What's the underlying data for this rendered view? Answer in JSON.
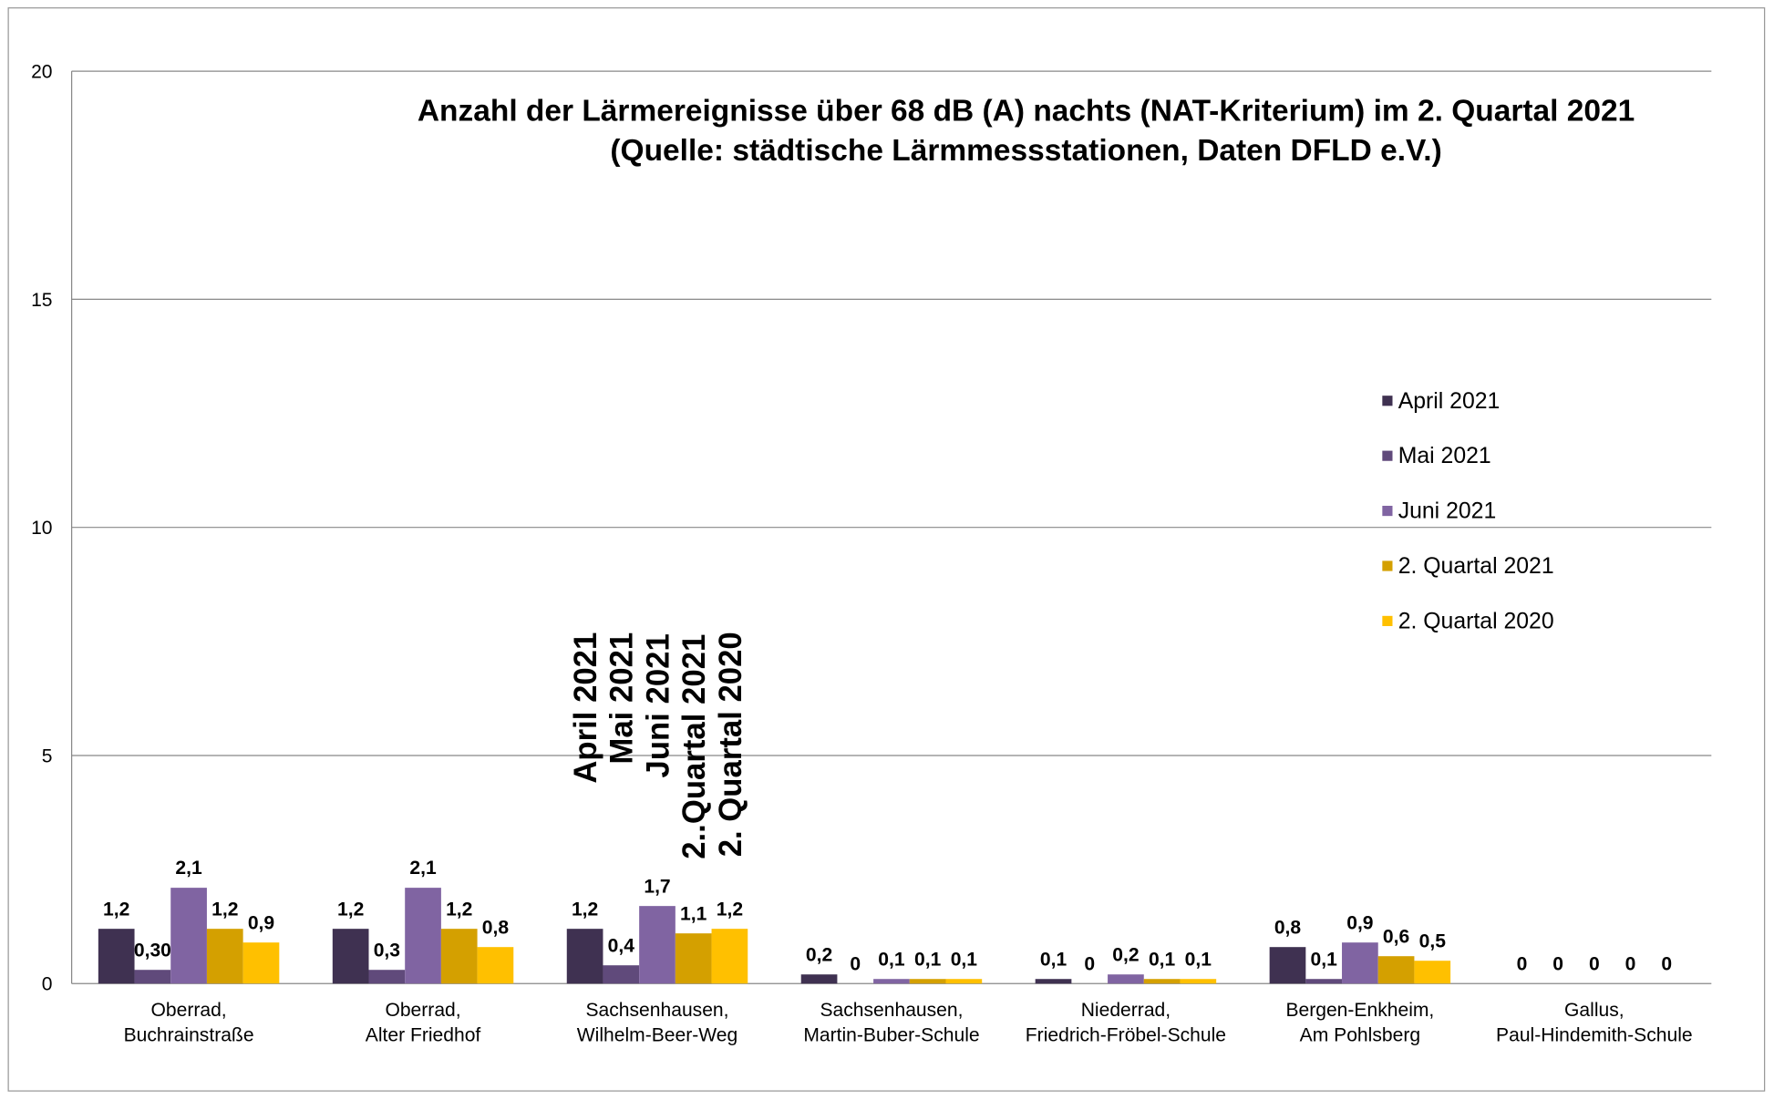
{
  "chart_data": {
    "type": "bar",
    "title": [
      "Anzahl der Lärmereignisse über 68 dB (A) nachts (NAT-Kriterium) im 2. Quartal 2021",
      "(Quelle: städtische Lärmmessstationen, Daten DFLD e.V.)"
    ],
    "categories": [
      [
        "Oberrad,",
        "Buchrainstraße"
      ],
      [
        "Oberrad,",
        "Alter Friedhof"
      ],
      [
        "Sachsenhausen,",
        "Wilhelm-Beer-Weg"
      ],
      [
        "Sachsenhausen,",
        "Martin-Buber-Schule"
      ],
      [
        "Niederrad,",
        "Friedrich-Fröbel-Schule"
      ],
      [
        "Bergen-Enkheim,",
        "Am Pohlsberg"
      ],
      [
        "Gallus,",
        "Paul-Hindemith-Schule"
      ]
    ],
    "series": [
      {
        "name": "April 2021",
        "color": "#3f3151",
        "values": [
          1.2,
          1.2,
          1.2,
          0.2,
          0.1,
          0.8,
          0
        ],
        "value_labels": [
          "1,2",
          "1,2",
          "1,2",
          "0,2",
          "0,1",
          "0,8",
          "0"
        ]
      },
      {
        "name": "Mai 2021",
        "color": "#604a7b",
        "values": [
          0.3,
          0.3,
          0.4,
          0,
          0,
          0.1,
          0
        ],
        "value_labels": [
          "0,30",
          "0,3",
          "0,4",
          "0",
          "0",
          "0,1",
          "0"
        ]
      },
      {
        "name": "Juni 2021",
        "color": "#8064a2",
        "values": [
          2.1,
          2.1,
          1.7,
          0.1,
          0.2,
          0.9,
          0
        ],
        "value_labels": [
          "2,1",
          "2,1",
          "1,7",
          "0,1",
          "0,2",
          "0,9",
          "0"
        ]
      },
      {
        "name": "2. Quartal 2021",
        "color": "#d4a000",
        "values": [
          1.2,
          1.2,
          1.1,
          0.1,
          0.1,
          0.6,
          0
        ],
        "value_labels": [
          "1,2",
          "1,2",
          "1,1",
          "0,1",
          "0,1",
          "0,6",
          "0"
        ]
      },
      {
        "name": "2. Quartal 2020",
        "color": "#ffc000",
        "values": [
          0.9,
          0.8,
          1.2,
          0.1,
          0.1,
          0.5,
          0
        ],
        "value_labels": [
          "0,9",
          "0,8",
          "1,2",
          "0,1",
          "0,1",
          "0,5",
          "0"
        ]
      }
    ],
    "annotations": [
      "April  2021",
      "Mai 2021",
      "Juni  2021",
      "2..Quartal 2021",
      "2. Quartal 2020"
    ],
    "ylim": [
      0,
      20
    ],
    "yticks": [
      0,
      5,
      10,
      15,
      20
    ],
    "grid": true,
    "legend": "right"
  }
}
